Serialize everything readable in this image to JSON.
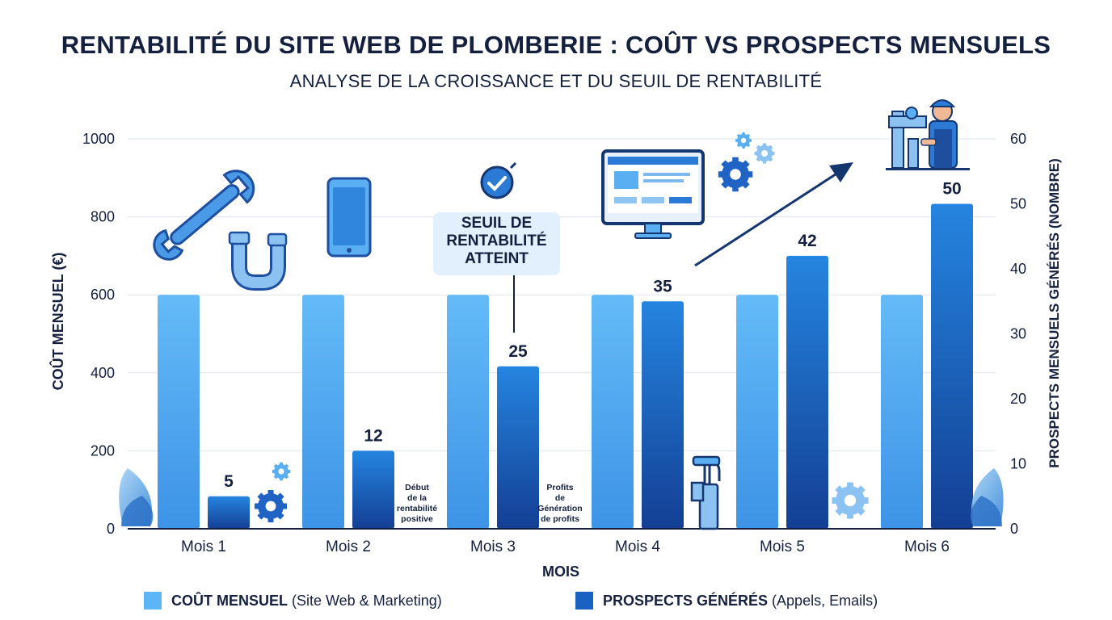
{
  "title": "RENTABILITÉ DU SITE WEB DE PLOMBERIE : COÛT VS PROSPECTS MENSUELS",
  "subtitle": "ANALYSE DE LA CROISSANCE ET DU SEUIL DE RENTABILITÉ",
  "callout": {
    "line1": "SEUIL DE",
    "line2": "RENTABILITÉ",
    "line3": "ATTEINT"
  },
  "notes": {
    "start": {
      "line1": "Début",
      "line2": "de la",
      "line3": "rentabilité",
      "line4": "positive"
    },
    "profits": {
      "line1": "Profits",
      "line2": "de",
      "line3": "Génération",
      "line4": "de profits"
    }
  },
  "legend": {
    "cost": {
      "bold": "COÛT MENSUEL",
      "rest": "(Site Web & Marketing)",
      "color": "#5cb6f5"
    },
    "prospects": {
      "bold": "PROSPECTS GÉNÉRÉS",
      "rest": "(Appels, Emails)",
      "color": "#1a62c2"
    }
  },
  "chart_data": {
    "type": "bar",
    "categories": [
      "Mois 1",
      "Mois 2",
      "Mois 3",
      "Mois 4",
      "Mois 5",
      "Mois 6"
    ],
    "xlabel": "MOIS",
    "ylabel": "COÛT MENSUEL (€)",
    "ylabel_right": "PROSPECTS MENSUELS GÉNÉRÉS (NOMBRE)",
    "ylim": [
      0,
      1000
    ],
    "ylim_right": [
      0,
      60
    ],
    "yticks": [
      0,
      200,
      400,
      600,
      800,
      1000
    ],
    "yticks_right": [
      0,
      10,
      20,
      30,
      40,
      50,
      60
    ],
    "grid": true,
    "legend_position": "bottom",
    "series": [
      {
        "name": "COÛT MENSUEL (Site Web & Marketing)",
        "axis": "left",
        "values": [
          600,
          600,
          600,
          600,
          600,
          600
        ],
        "color": "#5cb6f5"
      },
      {
        "name": "PROSPECTS GÉNÉRÉS (Appels, Emails)",
        "axis": "right",
        "values": [
          5,
          12,
          25,
          35,
          42,
          50
        ],
        "color": "#1a62c2",
        "data_labels": [
          "5",
          "12",
          "25",
          "35",
          "42",
          "50"
        ]
      }
    ]
  }
}
